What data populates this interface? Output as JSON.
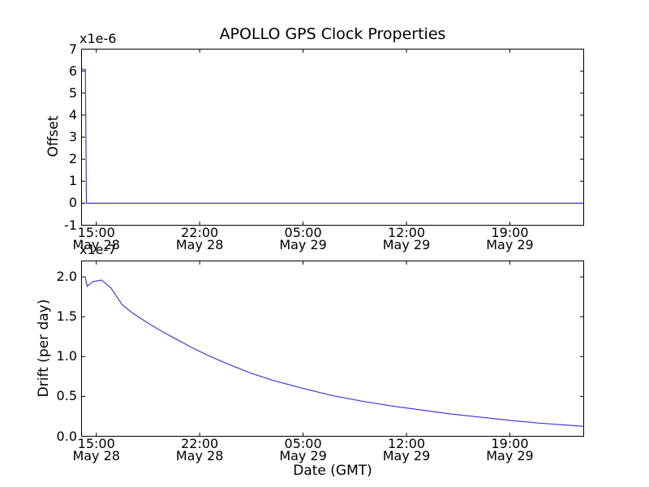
{
  "figure": {
    "title": "APOLLO GPS Clock Properties",
    "xlabel": "Date (GMT)",
    "background_color": "#ffffff",
    "frame_color": "#000000",
    "line_color": "#3b3bdb",
    "xlim_hours": [
      0,
      34
    ],
    "xticks": [
      {
        "t": 1,
        "time": "15:00",
        "date": "May 28"
      },
      {
        "t": 8,
        "time": "22:00",
        "date": "May 28"
      },
      {
        "t": 15,
        "time": "05:00",
        "date": "May 29"
      },
      {
        "t": 22,
        "time": "12:00",
        "date": "May 29"
      },
      {
        "t": 29,
        "time": "19:00",
        "date": "May 29"
      }
    ]
  },
  "chart_data": [
    {
      "type": "line",
      "name": "offset",
      "ylabel": "Offset",
      "scale_label": "x1e-6",
      "ylim": [
        -1,
        7
      ],
      "grid": false,
      "yticks": [
        {
          "v": 7,
          "label": "7"
        },
        {
          "v": 6,
          "label": "6"
        },
        {
          "v": 5,
          "label": "5"
        },
        {
          "v": 4,
          "label": "4"
        },
        {
          "v": 3,
          "label": "3"
        },
        {
          "v": 2,
          "label": "2"
        },
        {
          "v": 1,
          "label": "1"
        },
        {
          "v": 0,
          "label": "0"
        },
        {
          "v": -1,
          "label": "-1"
        }
      ],
      "x_hours": [
        0,
        0.06,
        0.26,
        0.33,
        34
      ],
      "y": [
        6.02,
        6.1,
        6.07,
        0.0,
        0.0
      ]
    },
    {
      "type": "line",
      "name": "drift",
      "ylabel": "Drift (per day)",
      "scale_label": "x1e-7",
      "ylim": [
        0,
        2.2
      ],
      "grid": false,
      "yticks": [
        {
          "v": 2.0,
          "label": "2.0"
        },
        {
          "v": 1.5,
          "label": "1.5"
        },
        {
          "v": 1.0,
          "label": "1.0"
        },
        {
          "v": 0.5,
          "label": "0.5"
        },
        {
          "v": 0.0,
          "label": "0.0"
        }
      ],
      "x_hours": [
        0,
        0.25,
        0.38,
        0.75,
        1.35,
        2,
        2.75,
        3.5,
        4.5,
        5.5,
        6.5,
        7.5,
        8.5,
        10,
        11.5,
        13,
        15,
        17,
        19,
        21,
        23,
        25,
        27,
        29,
        31,
        34
      ],
      "y": [
        2.0,
        2.0,
        1.88,
        1.94,
        1.96,
        1.86,
        1.65,
        1.54,
        1.42,
        1.31,
        1.21,
        1.11,
        1.02,
        0.9,
        0.79,
        0.7,
        0.6,
        0.51,
        0.44,
        0.38,
        0.33,
        0.28,
        0.24,
        0.2,
        0.165,
        0.125
      ]
    }
  ]
}
